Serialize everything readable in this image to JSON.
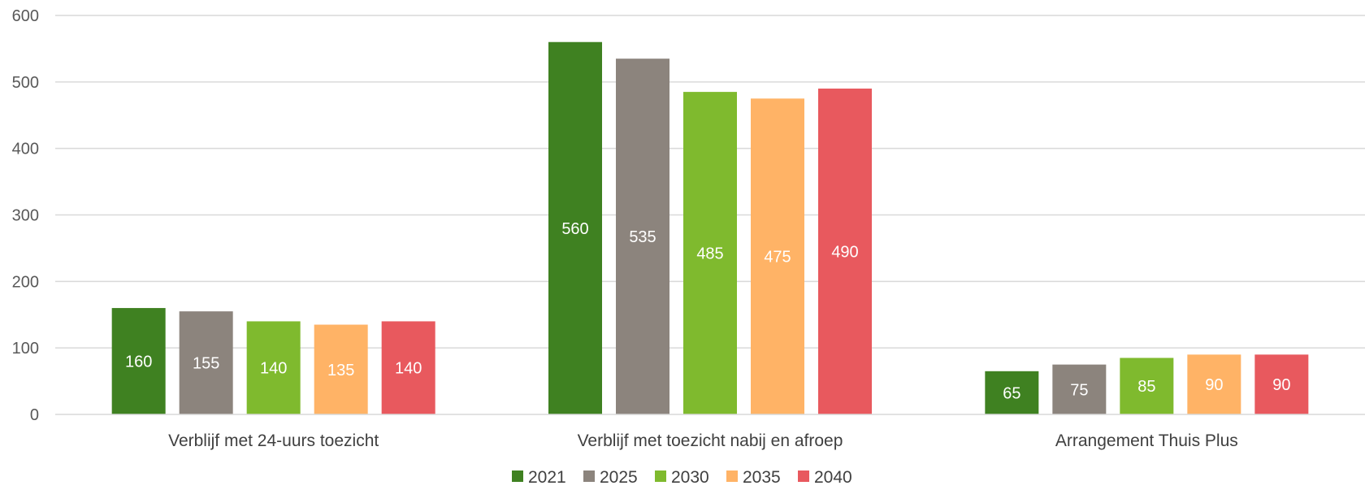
{
  "chart_data": {
    "type": "bar",
    "title": "",
    "xlabel": "",
    "ylabel": "",
    "ylim": [
      0,
      600
    ],
    "yticks": [
      0,
      100,
      200,
      300,
      400,
      500,
      600
    ],
    "grid": true,
    "legend_position": "bottom",
    "data_labels": true,
    "categories": [
      "Verblijf met 24-uurs toezicht",
      "Verblijf met toezicht nabij en afroep",
      "Arrangement Thuis Plus"
    ],
    "series": [
      {
        "name": "2021",
        "color": "#3f8121",
        "values": [
          160,
          560,
          65
        ]
      },
      {
        "name": "2025",
        "color": "#8c847d",
        "values": [
          155,
          535,
          75
        ]
      },
      {
        "name": "2030",
        "color": "#7fba2e",
        "values": [
          140,
          485,
          85
        ]
      },
      {
        "name": "2035",
        "color": "#ffb366",
        "values": [
          135,
          475,
          90
        ]
      },
      {
        "name": "2040",
        "color": "#e8595e",
        "values": [
          140,
          490,
          90
        ]
      }
    ]
  }
}
